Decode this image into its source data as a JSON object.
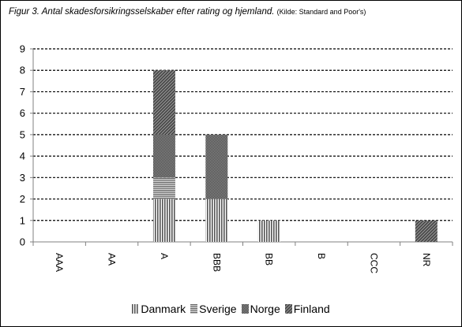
{
  "title": {
    "main": "Figur 3.  Antal skadesforsikringsselskaber efter rating og hjemland.",
    "source": "(Kilde: Standard and Poor's)"
  },
  "chart_data": {
    "type": "bar",
    "stacked": true,
    "title": "Figur 3.  Antal skadesforsikringsselskaber efter rating og hjemland.",
    "subtitle": "(Kilde: Standard and Poor's)",
    "categories": [
      "AAA",
      "AA",
      "A",
      "BBB",
      "BB",
      "B",
      "CCC",
      "NR"
    ],
    "series": [
      {
        "name": "Danmark",
        "values": [
          0,
          0,
          2,
          2,
          1,
          0,
          0,
          0
        ]
      },
      {
        "name": "Sverige",
        "values": [
          0,
          0,
          1,
          0,
          0,
          0,
          0,
          0
        ]
      },
      {
        "name": "Norge",
        "values": [
          0,
          0,
          2,
          3,
          0,
          0,
          0,
          0
        ]
      },
      {
        "name": "Finland",
        "values": [
          0,
          0,
          3,
          0,
          0,
          0,
          0,
          1
        ]
      }
    ],
    "ylim": [
      0,
      9
    ],
    "yticks": [
      0,
      1,
      2,
      3,
      4,
      5,
      6,
      7,
      8,
      9
    ],
    "grid": "horizontal dashed",
    "legend": "bottom",
    "xlabel": "",
    "ylabel": ""
  }
}
